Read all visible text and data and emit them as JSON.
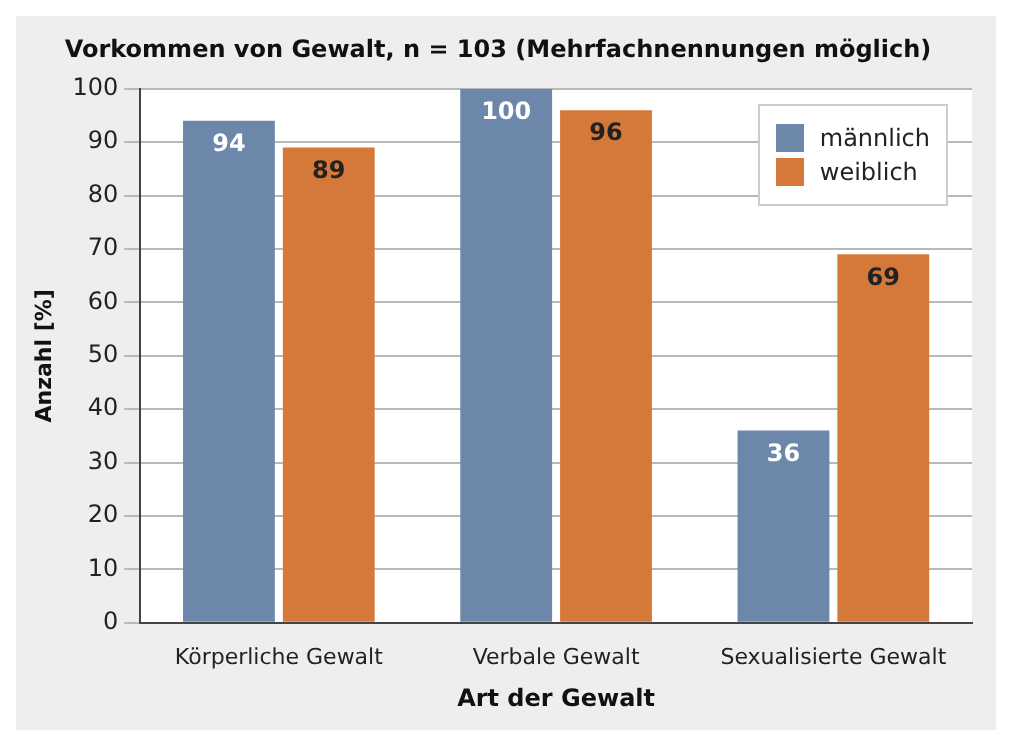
{
  "chart_data": {
    "type": "bar",
    "title": "Vorkommen von Gewalt, n = 103 (Mehrfachnennungen möglich)",
    "xlabel": "Art der Gewalt",
    "ylabel": "Anzahl [%]",
    "categories": [
      "Körperliche Gewalt",
      "Verbale Gewalt",
      "Sexualisierte Gewalt"
    ],
    "series": [
      {
        "name": "männlich",
        "color": "#6d87aa",
        "values": [
          94,
          100,
          36
        ]
      },
      {
        "name": "weiblich",
        "color": "#d4793a",
        "values": [
          89,
          96,
          69
        ]
      }
    ],
    "ylim": [
      0,
      100
    ],
    "yticks": [
      0,
      10,
      20,
      30,
      40,
      50,
      60,
      70,
      80,
      90,
      100
    ],
    "grid": "y",
    "legend": "top right",
    "data_labels": true
  }
}
